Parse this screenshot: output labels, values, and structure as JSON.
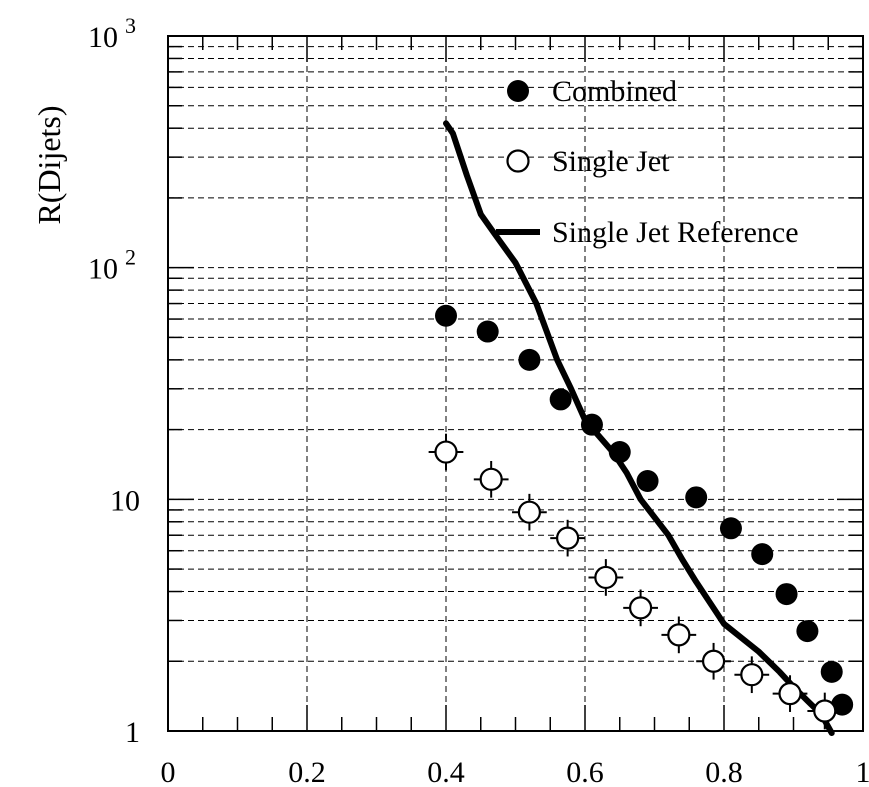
{
  "chart_data": {
    "type": "scatter",
    "title": "",
    "xlabel": "",
    "ylabel": "R(Dijets)",
    "xlim": [
      0,
      1
    ],
    "ylim": [
      1,
      1000
    ],
    "yscale": "log",
    "grid": true,
    "legend_position": "top-right",
    "x_tick_labels": [
      "0",
      "0.2",
      "0.4",
      "0.6",
      "0.8",
      "1"
    ],
    "x_ticks": [
      0,
      0.2,
      0.4,
      0.6,
      0.8,
      1
    ],
    "y_ticks": [
      {
        "value": 1,
        "base": "1",
        "exp": ""
      },
      {
        "value": 10,
        "base": "10",
        "exp": ""
      },
      {
        "value": 100,
        "base": "10",
        "exp": "2"
      },
      {
        "value": 1000,
        "base": "10",
        "exp": "3"
      }
    ],
    "series": [
      {
        "name": "Combined",
        "marker": "filled-circle",
        "x": [
          0.4,
          0.46,
          0.52,
          0.565,
          0.61,
          0.65,
          0.69,
          0.76,
          0.81,
          0.855,
          0.89,
          0.92,
          0.955,
          0.97
        ],
        "y": [
          62,
          53,
          40,
          27,
          21,
          16,
          12,
          10.2,
          7.5,
          5.8,
          3.9,
          2.7,
          1.8,
          1.3
        ]
      },
      {
        "name": "Single Jet",
        "marker": "open-circle",
        "x": [
          0.4,
          0.465,
          0.52,
          0.575,
          0.63,
          0.68,
          0.735,
          0.785,
          0.84,
          0.895,
          0.945
        ],
        "y": [
          16,
          12.2,
          8.8,
          6.8,
          4.6,
          3.4,
          2.6,
          2.0,
          1.75,
          1.45,
          1.22
        ],
        "x_err": 0.025,
        "y_err_frac": 0.2
      },
      {
        "name": "Single Jet Reference",
        "marker": "line",
        "x": [
          0.4,
          0.41,
          0.43,
          0.45,
          0.47,
          0.5,
          0.53,
          0.56,
          0.58,
          0.6,
          0.64,
          0.66,
          0.68,
          0.72,
          0.74,
          0.76,
          0.8,
          0.85,
          0.88,
          0.9,
          0.92,
          0.94,
          0.955
        ],
        "y": [
          420,
          380,
          250,
          170,
          140,
          105,
          70,
          40,
          30,
          22,
          16,
          13,
          10,
          7,
          5.5,
          4.4,
          2.9,
          2.2,
          1.8,
          1.55,
          1.35,
          1.18,
          0.98
        ]
      }
    ]
  }
}
